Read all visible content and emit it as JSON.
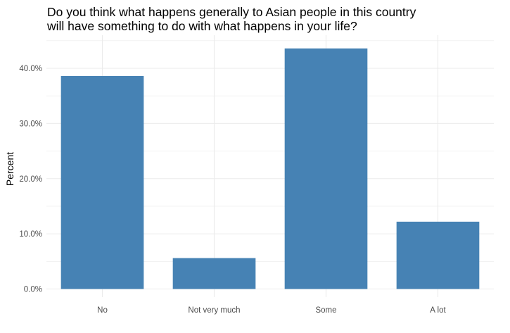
{
  "chart_data": {
    "type": "bar",
    "title_lines": [
      "Do you think what happens generally to Asian people in this country",
      "will have something to do with what happens in your life?"
    ],
    "xlabel": "",
    "ylabel": "Percent",
    "categories": [
      "No",
      "Not very much",
      "Some",
      "A lot"
    ],
    "values": [
      38.6,
      5.6,
      43.6,
      12.2
    ],
    "ylim": [
      0,
      46
    ],
    "y_ticks": [
      0,
      10,
      20,
      30,
      40
    ],
    "y_tick_labels": [
      "0.0%",
      "10.0%",
      "20.0%",
      "30.0%",
      "40.0%"
    ],
    "bar_color": "#4682B4",
    "grid_color": "#EBEBEB",
    "grid": true,
    "legend": "none"
  }
}
